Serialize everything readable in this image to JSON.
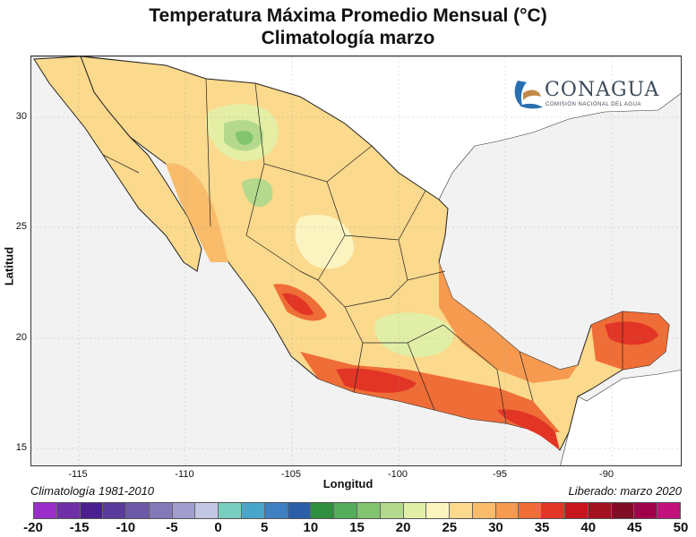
{
  "title": "Temperatura Máxima Promedio Mensual (°C)",
  "subtitle": "Climatología marzo",
  "xlabel": "Longitud",
  "ylabel": "Latitud",
  "x_ticks": [
    "-115",
    "-110",
    "-105",
    "-100",
    "-95",
    "-90"
  ],
  "y_ticks": [
    "30",
    "25",
    "20",
    "15"
  ],
  "footer_left": "Climatología 1981-2010",
  "footer_right": "Liberado: marzo 2020",
  "logo": {
    "name": "CONAGUA",
    "tagline": "COMISIÓN NACIONAL DEL AGUA",
    "icon": "conagua-swan-wave-logo"
  },
  "colorbar": {
    "tick_labels": [
      "-20",
      "-15",
      "-10",
      "-5",
      "0",
      "5",
      "10",
      "15",
      "20",
      "25",
      "30",
      "35",
      "40",
      "45",
      "50"
    ],
    "colors": [
      "#9b2fc9",
      "#6f2fa6",
      "#4b1f8e",
      "#5a3a9a",
      "#6c5aa8",
      "#8378b8",
      "#a19dcc",
      "#c3c6e4",
      "#78cfbf",
      "#4aa6c9",
      "#3f80c3",
      "#2a5fa8",
      "#2f8e3f",
      "#53ad5b",
      "#82c46f",
      "#b4d98c",
      "#e1efa6",
      "#fbf4c0",
      "#fbd98d",
      "#f8bc6b",
      "#f59a4f",
      "#ef6d36",
      "#e23526",
      "#c7141d",
      "#a3101f",
      "#7e0d25",
      "#a0004a",
      "#c2117a"
    ]
  },
  "colors": {
    "ocean": "#f2f2f2",
    "land_outside": "#ffffff",
    "temp_27": "#fbd98d",
    "temp_28": "#f8bc6b",
    "temp_30": "#f59a4f",
    "temp_33": "#ef6d36",
    "temp_35": "#e23526",
    "temp_22": "#e1efa6",
    "temp_20": "#b4d98c",
    "temp_18": "#82c46f"
  },
  "map": {
    "region": "México",
    "lon_range": [
      -117,
      -86.5
    ],
    "lat_range": [
      14.5,
      32.7
    ]
  }
}
